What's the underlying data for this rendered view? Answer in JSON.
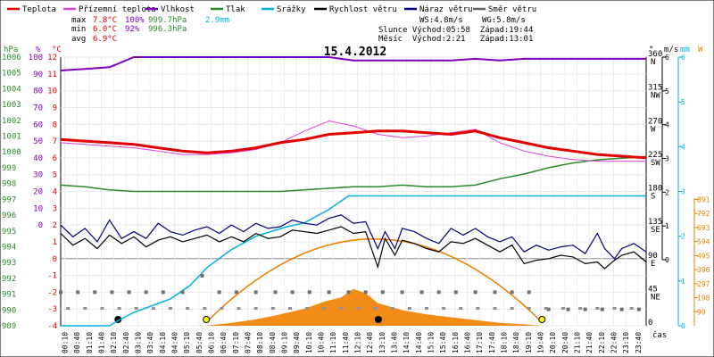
{
  "chart_data": {
    "type": "line",
    "title": "15.4.2012",
    "legend": [
      {
        "label": "Teplota",
        "color": "#e00000"
      },
      {
        "label": "Přízemní teplota",
        "color": "#e040e0"
      },
      {
        "label": "Vlhkost",
        "color": "#8000c0"
      },
      {
        "label": "Tlak",
        "color": "#2a8a2a"
      },
      {
        "label": "Srážky",
        "color": "#00b0e0"
      },
      {
        "label": "Rychlost větru",
        "color": "#000000"
      },
      {
        "label": "Náraz větru",
        "color": "#000080"
      },
      {
        "label": "Směr větru",
        "color": "#606060"
      }
    ],
    "stats": {
      "max": {
        "label": "max",
        "temp": "7.8°C",
        "hum": "100%",
        "press": "999.7hPa",
        "rain": "2.9mm"
      },
      "min": {
        "label": "min",
        "temp": "6.0°C",
        "hum": "92%",
        "press": "996.3hPa"
      },
      "avg": {
        "label": "avg",
        "temp": "6.9°C"
      },
      "ws": "WS:4.8m/s",
      "wg": "WG:5.8m/s",
      "sun": "Slunce Východ:05:58  Západ:19:44",
      "moon": "Měsíc  Východ:2:21   Západ:13:01"
    },
    "axes": {
      "left_units": {
        "hpa": "hPa",
        "pct": "%",
        "deg": "°C"
      },
      "right_units": {
        "dir": "°",
        "ms": "m/s",
        "mm": "mm",
        "w": "W"
      },
      "xlabel": "čas",
      "press_ticks": [
        "1006",
        "1005",
        "1004",
        "1003",
        "1002",
        "1001",
        "1000",
        "999",
        "998",
        "997",
        "996",
        "995",
        "994",
        "993",
        "992",
        "991",
        "990",
        "989"
      ],
      "pct_ticks": [
        "100",
        "90",
        "80",
        "70",
        "60",
        "50",
        "40",
        "30",
        "20",
        "10",
        "0"
      ],
      "temp_ticks": [
        "12",
        "11",
        "10",
        "9",
        "8",
        "7",
        "6",
        "5",
        "4",
        "3",
        "2",
        "1",
        "0",
        "-1",
        "-2",
        "-3",
        "-4"
      ],
      "dir_ticks": [
        [
          "360",
          "N"
        ],
        [
          "315",
          "NW"
        ],
        [
          "270",
          "W"
        ],
        [
          "225",
          "SW"
        ],
        [
          "180",
          "S"
        ],
        [
          "135",
          "SE"
        ],
        [
          "90",
          "E"
        ],
        [
          "45",
          "NE"
        ],
        [
          "0",
          ""
        ]
      ],
      "ms_ticks": [
        "6",
        "5",
        "4",
        "3",
        "2",
        "1",
        "0"
      ],
      "w_ticks": [
        "891",
        "792",
        "693",
        "594",
        "495",
        "396",
        "297",
        "198",
        "99"
      ],
      "rain_ticks": [
        "6",
        "5",
        "4",
        "3",
        "2",
        "1",
        "0"
      ],
      "x_ticks": [
        "00:10",
        "00:40",
        "01:10",
        "01:40",
        "02:10",
        "02:40",
        "03:10",
        "03:40",
        "04:10",
        "04:40",
        "05:10",
        "05:40",
        "06:10",
        "06:40",
        "07:10",
        "07:40",
        "08:10",
        "08:40",
        "09:10",
        "09:40",
        "10:10",
        "10:40",
        "11:10",
        "11:40",
        "12:10",
        "12:40",
        "13:10",
        "13:40",
        "14:10",
        "14:40",
        "15:10",
        "15:40",
        "16:10",
        "16:40",
        "17:10",
        "17:40",
        "18:10",
        "18:40",
        "19:10",
        "19:40",
        "20:10",
        "20:40",
        "21:10",
        "21:40",
        "22:10",
        "22:40",
        "23:10",
        "23:40"
      ]
    },
    "series": {
      "temperature": [
        [
          0,
          7.1
        ],
        [
          1,
          7.0
        ],
        [
          2,
          6.9
        ],
        [
          3,
          6.8
        ],
        [
          4,
          6.6
        ],
        [
          5,
          6.4
        ],
        [
          6,
          6.3
        ],
        [
          7,
          6.4
        ],
        [
          8,
          6.6
        ],
        [
          9,
          6.9
        ],
        [
          10,
          7.1
        ],
        [
          11,
          7.4
        ],
        [
          12,
          7.5
        ],
        [
          13,
          7.6
        ],
        [
          14,
          7.6
        ],
        [
          15,
          7.5
        ],
        [
          16,
          7.4
        ],
        [
          17,
          7.6
        ],
        [
          18,
          7.2
        ],
        [
          19,
          6.9
        ],
        [
          20,
          6.6
        ],
        [
          21,
          6.4
        ],
        [
          22,
          6.2
        ],
        [
          23,
          6.1
        ],
        [
          24,
          6.0
        ]
      ],
      "ground_temperature": [
        [
          0,
          6.9
        ],
        [
          1,
          6.8
        ],
        [
          2,
          6.7
        ],
        [
          3,
          6.6
        ],
        [
          4,
          6.4
        ],
        [
          5,
          6.2
        ],
        [
          6,
          6.2
        ],
        [
          7,
          6.3
        ],
        [
          8,
          6.5
        ],
        [
          9,
          6.9
        ],
        [
          10,
          7.6
        ],
        [
          11,
          8.2
        ],
        [
          12,
          7.9
        ],
        [
          13,
          7.4
        ],
        [
          14,
          7.2
        ],
        [
          15,
          7.3
        ],
        [
          16,
          7.5
        ],
        [
          17,
          7.7
        ],
        [
          18,
          6.9
        ],
        [
          19,
          6.4
        ],
        [
          20,
          6.1
        ],
        [
          21,
          5.9
        ],
        [
          22,
          5.8
        ],
        [
          23,
          5.8
        ],
        [
          24,
          5.8
        ]
      ],
      "humidity": [
        [
          0,
          92
        ],
        [
          1,
          93
        ],
        [
          2,
          94
        ],
        [
          3,
          100
        ],
        [
          4,
          100
        ],
        [
          5,
          100
        ],
        [
          6,
          100
        ],
        [
          7,
          100
        ],
        [
          8,
          100
        ],
        [
          9,
          100
        ],
        [
          10,
          100
        ],
        [
          11,
          100
        ],
        [
          12,
          98
        ],
        [
          13,
          98
        ],
        [
          14,
          98
        ],
        [
          15,
          98
        ],
        [
          16,
          98
        ],
        [
          17,
          99
        ],
        [
          18,
          98
        ],
        [
          19,
          99
        ],
        [
          20,
          99
        ],
        [
          21,
          99
        ],
        [
          22,
          99
        ],
        [
          23,
          99
        ],
        [
          24,
          99
        ]
      ],
      "pressure": [
        [
          0,
          997.9
        ],
        [
          1,
          997.8
        ],
        [
          2,
          997.6
        ],
        [
          3,
          997.5
        ],
        [
          4,
          997.5
        ],
        [
          5,
          997.5
        ],
        [
          6,
          997.5
        ],
        [
          7,
          997.5
        ],
        [
          8,
          997.5
        ],
        [
          9,
          997.5
        ],
        [
          10,
          997.6
        ],
        [
          11,
          997.7
        ],
        [
          12,
          997.8
        ],
        [
          13,
          997.8
        ],
        [
          14,
          997.9
        ],
        [
          15,
          997.8
        ],
        [
          16,
          997.8
        ],
        [
          17,
          997.9
        ],
        [
          18,
          998.3
        ],
        [
          19,
          998.6
        ],
        [
          20,
          999.0
        ],
        [
          21,
          999.3
        ],
        [
          22,
          999.5
        ],
        [
          23,
          999.6
        ],
        [
          24,
          999.7
        ]
      ],
      "rain_mm": [
        [
          0,
          0
        ],
        [
          2,
          0
        ],
        [
          2.3,
          0.1
        ],
        [
          3.0,
          0.3
        ],
        [
          4.5,
          0.6
        ],
        [
          5.3,
          0.9
        ],
        [
          6.0,
          1.3
        ],
        [
          7.0,
          1.7
        ],
        [
          8.0,
          2.0
        ],
        [
          9.2,
          2.2
        ],
        [
          10.0,
          2.3
        ],
        [
          11.0,
          2.6
        ],
        [
          11.8,
          2.9
        ],
        [
          24,
          2.9
        ]
      ],
      "wind_speed": [
        [
          0,
          1.5
        ],
        [
          0.5,
          0.8
        ],
        [
          1,
          1.2
        ],
        [
          1.5,
          0.6
        ],
        [
          2,
          1.4
        ],
        [
          2.5,
          0.9
        ],
        [
          3,
          1.3
        ],
        [
          3.5,
          0.7
        ],
        [
          4,
          1.1
        ],
        [
          4.5,
          1.3
        ],
        [
          5,
          1.0
        ],
        [
          5.5,
          1.2
        ],
        [
          6,
          1.4
        ],
        [
          6.5,
          1.0
        ],
        [
          7,
          1.3
        ],
        [
          7.5,
          1.0
        ],
        [
          8,
          1.5
        ],
        [
          8.5,
          1.2
        ],
        [
          9,
          1.3
        ],
        [
          9.5,
          1.7
        ],
        [
          10,
          1.6
        ],
        [
          10.5,
          1.5
        ],
        [
          11,
          1.7
        ],
        [
          11.5,
          1.9
        ],
        [
          12,
          1.5
        ],
        [
          12.5,
          1.6
        ],
        [
          13,
          -0.5
        ],
        [
          13.3,
          1.2
        ],
        [
          13.7,
          0.2
        ],
        [
          14,
          1.1
        ],
        [
          14.5,
          0.9
        ],
        [
          15,
          0.6
        ],
        [
          15.5,
          0.4
        ],
        [
          16,
          1.0
        ],
        [
          16.5,
          0.9
        ],
        [
          17,
          1.2
        ],
        [
          17.5,
          0.8
        ],
        [
          18,
          0.4
        ],
        [
          18.5,
          0.8
        ],
        [
          19,
          -0.3
        ],
        [
          19.5,
          -0.1
        ],
        [
          20,
          0.0
        ],
        [
          20.5,
          0.2
        ],
        [
          21,
          0.1
        ],
        [
          21.5,
          -0.3
        ],
        [
          22,
          -0.2
        ],
        [
          22.3,
          -0.6
        ],
        [
          22.7,
          -0.1
        ],
        [
          23,
          0.2
        ],
        [
          23.5,
          0.4
        ],
        [
          24,
          -0.2
        ]
      ],
      "wind_gust": [
        [
          0,
          2.0
        ],
        [
          0.5,
          1.3
        ],
        [
          1,
          1.8
        ],
        [
          1.5,
          1.0
        ],
        [
          2,
          2.3
        ],
        [
          2.5,
          1.2
        ],
        [
          3,
          1.6
        ],
        [
          3.5,
          1.2
        ],
        [
          4,
          2.1
        ],
        [
          4.5,
          1.6
        ],
        [
          5,
          1.4
        ],
        [
          5.5,
          1.7
        ],
        [
          6,
          1.9
        ],
        [
          6.5,
          1.5
        ],
        [
          7,
          2.0
        ],
        [
          7.5,
          1.6
        ],
        [
          8,
          2.1
        ],
        [
          8.5,
          1.8
        ],
        [
          9,
          1.9
        ],
        [
          9.5,
          2.3
        ],
        [
          10,
          2.1
        ],
        [
          10.5,
          2.0
        ],
        [
          11,
          2.4
        ],
        [
          11.5,
          2.6
        ],
        [
          12,
          2.1
        ],
        [
          12.5,
          2.2
        ],
        [
          13,
          0.6
        ],
        [
          13.3,
          1.6
        ],
        [
          13.7,
          0.6
        ],
        [
          14,
          1.8
        ],
        [
          14.5,
          1.6
        ],
        [
          15,
          1.2
        ],
        [
          15.5,
          0.9
        ],
        [
          16,
          1.8
        ],
        [
          16.5,
          1.4
        ],
        [
          17,
          1.8
        ],
        [
          17.5,
          1.3
        ],
        [
          18,
          1.0
        ],
        [
          18.5,
          1.3
        ],
        [
          19,
          0.4
        ],
        [
          19.5,
          0.8
        ],
        [
          20,
          0.5
        ],
        [
          20.5,
          0.7
        ],
        [
          21,
          0.8
        ],
        [
          21.5,
          0.3
        ],
        [
          22,
          1.5
        ],
        [
          22.3,
          0.6
        ],
        [
          22.7,
          0.0
        ],
        [
          23,
          0.6
        ],
        [
          23.5,
          0.9
        ],
        [
          24,
          0.4
        ]
      ],
      "wind_dir_deg": [
        [
          0,
          45
        ],
        [
          0.7,
          45
        ],
        [
          1.4,
          45
        ],
        [
          2.1,
          45
        ],
        [
          2.8,
          45
        ],
        [
          3.5,
          45
        ],
        [
          4.2,
          45
        ],
        [
          5,
          45
        ],
        [
          5.8,
          67
        ],
        [
          6.5,
          45
        ],
        [
          7.2,
          45
        ],
        [
          8,
          45
        ],
        [
          8.8,
          45
        ],
        [
          9.5,
          45
        ],
        [
          10.2,
          45
        ],
        [
          11,
          45
        ],
        [
          11.8,
          45
        ],
        [
          12.5,
          45
        ],
        [
          13.2,
          45
        ],
        [
          14,
          45
        ],
        [
          14.8,
          45
        ],
        [
          15.5,
          45
        ],
        [
          16.2,
          45
        ],
        [
          17,
          45
        ],
        [
          17.8,
          45
        ],
        [
          18.5,
          45
        ],
        [
          19.2,
          45
        ],
        [
          20,
          22
        ],
        [
          20.8,
          22
        ],
        [
          21.5,
          22
        ],
        [
          22.2,
          22
        ],
        [
          23,
          22
        ],
        [
          23.7,
          22
        ]
      ],
      "solar_w": [
        [
          5.9,
          0
        ],
        [
          7,
          20
        ],
        [
          8,
          45
        ],
        [
          9,
          80
        ],
        [
          10,
          120
        ],
        [
          10.8,
          170
        ],
        [
          11.5,
          200
        ],
        [
          12,
          260
        ],
        [
          12.5,
          230
        ],
        [
          13,
          160
        ],
        [
          14,
          110
        ],
        [
          15,
          80
        ],
        [
          16,
          60
        ],
        [
          17,
          40
        ],
        [
          18,
          20
        ],
        [
          19,
          10
        ],
        [
          19.7,
          0
        ]
      ],
      "sun_curve": [
        [
          5.97,
          0
        ],
        [
          12.85,
          1
        ],
        [
          19.73,
          0
        ]
      ]
    }
  }
}
